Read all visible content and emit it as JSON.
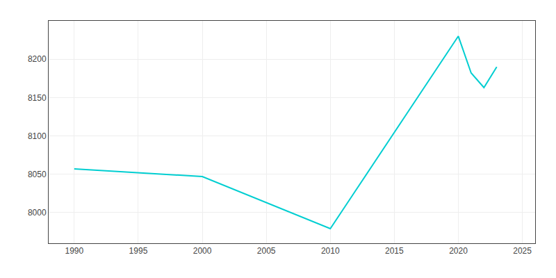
{
  "chart_data": {
    "type": "line",
    "x": [
      1990,
      1995,
      2000,
      2010,
      2020,
      2021,
      2022,
      2023
    ],
    "values": [
      8057,
      8052,
      8047,
      7979,
      8230,
      8182,
      8163,
      8190
    ],
    "color": "#00CED1",
    "xlim": [
      1988,
      2026
    ],
    "xticks": [
      1990,
      1995,
      2000,
      2005,
      2010,
      2015,
      2020,
      2025
    ],
    "ylim": [
      7960,
      8250
    ],
    "yticks": [
      8000,
      8050,
      8100,
      8150,
      8200
    ],
    "grid": true
  }
}
